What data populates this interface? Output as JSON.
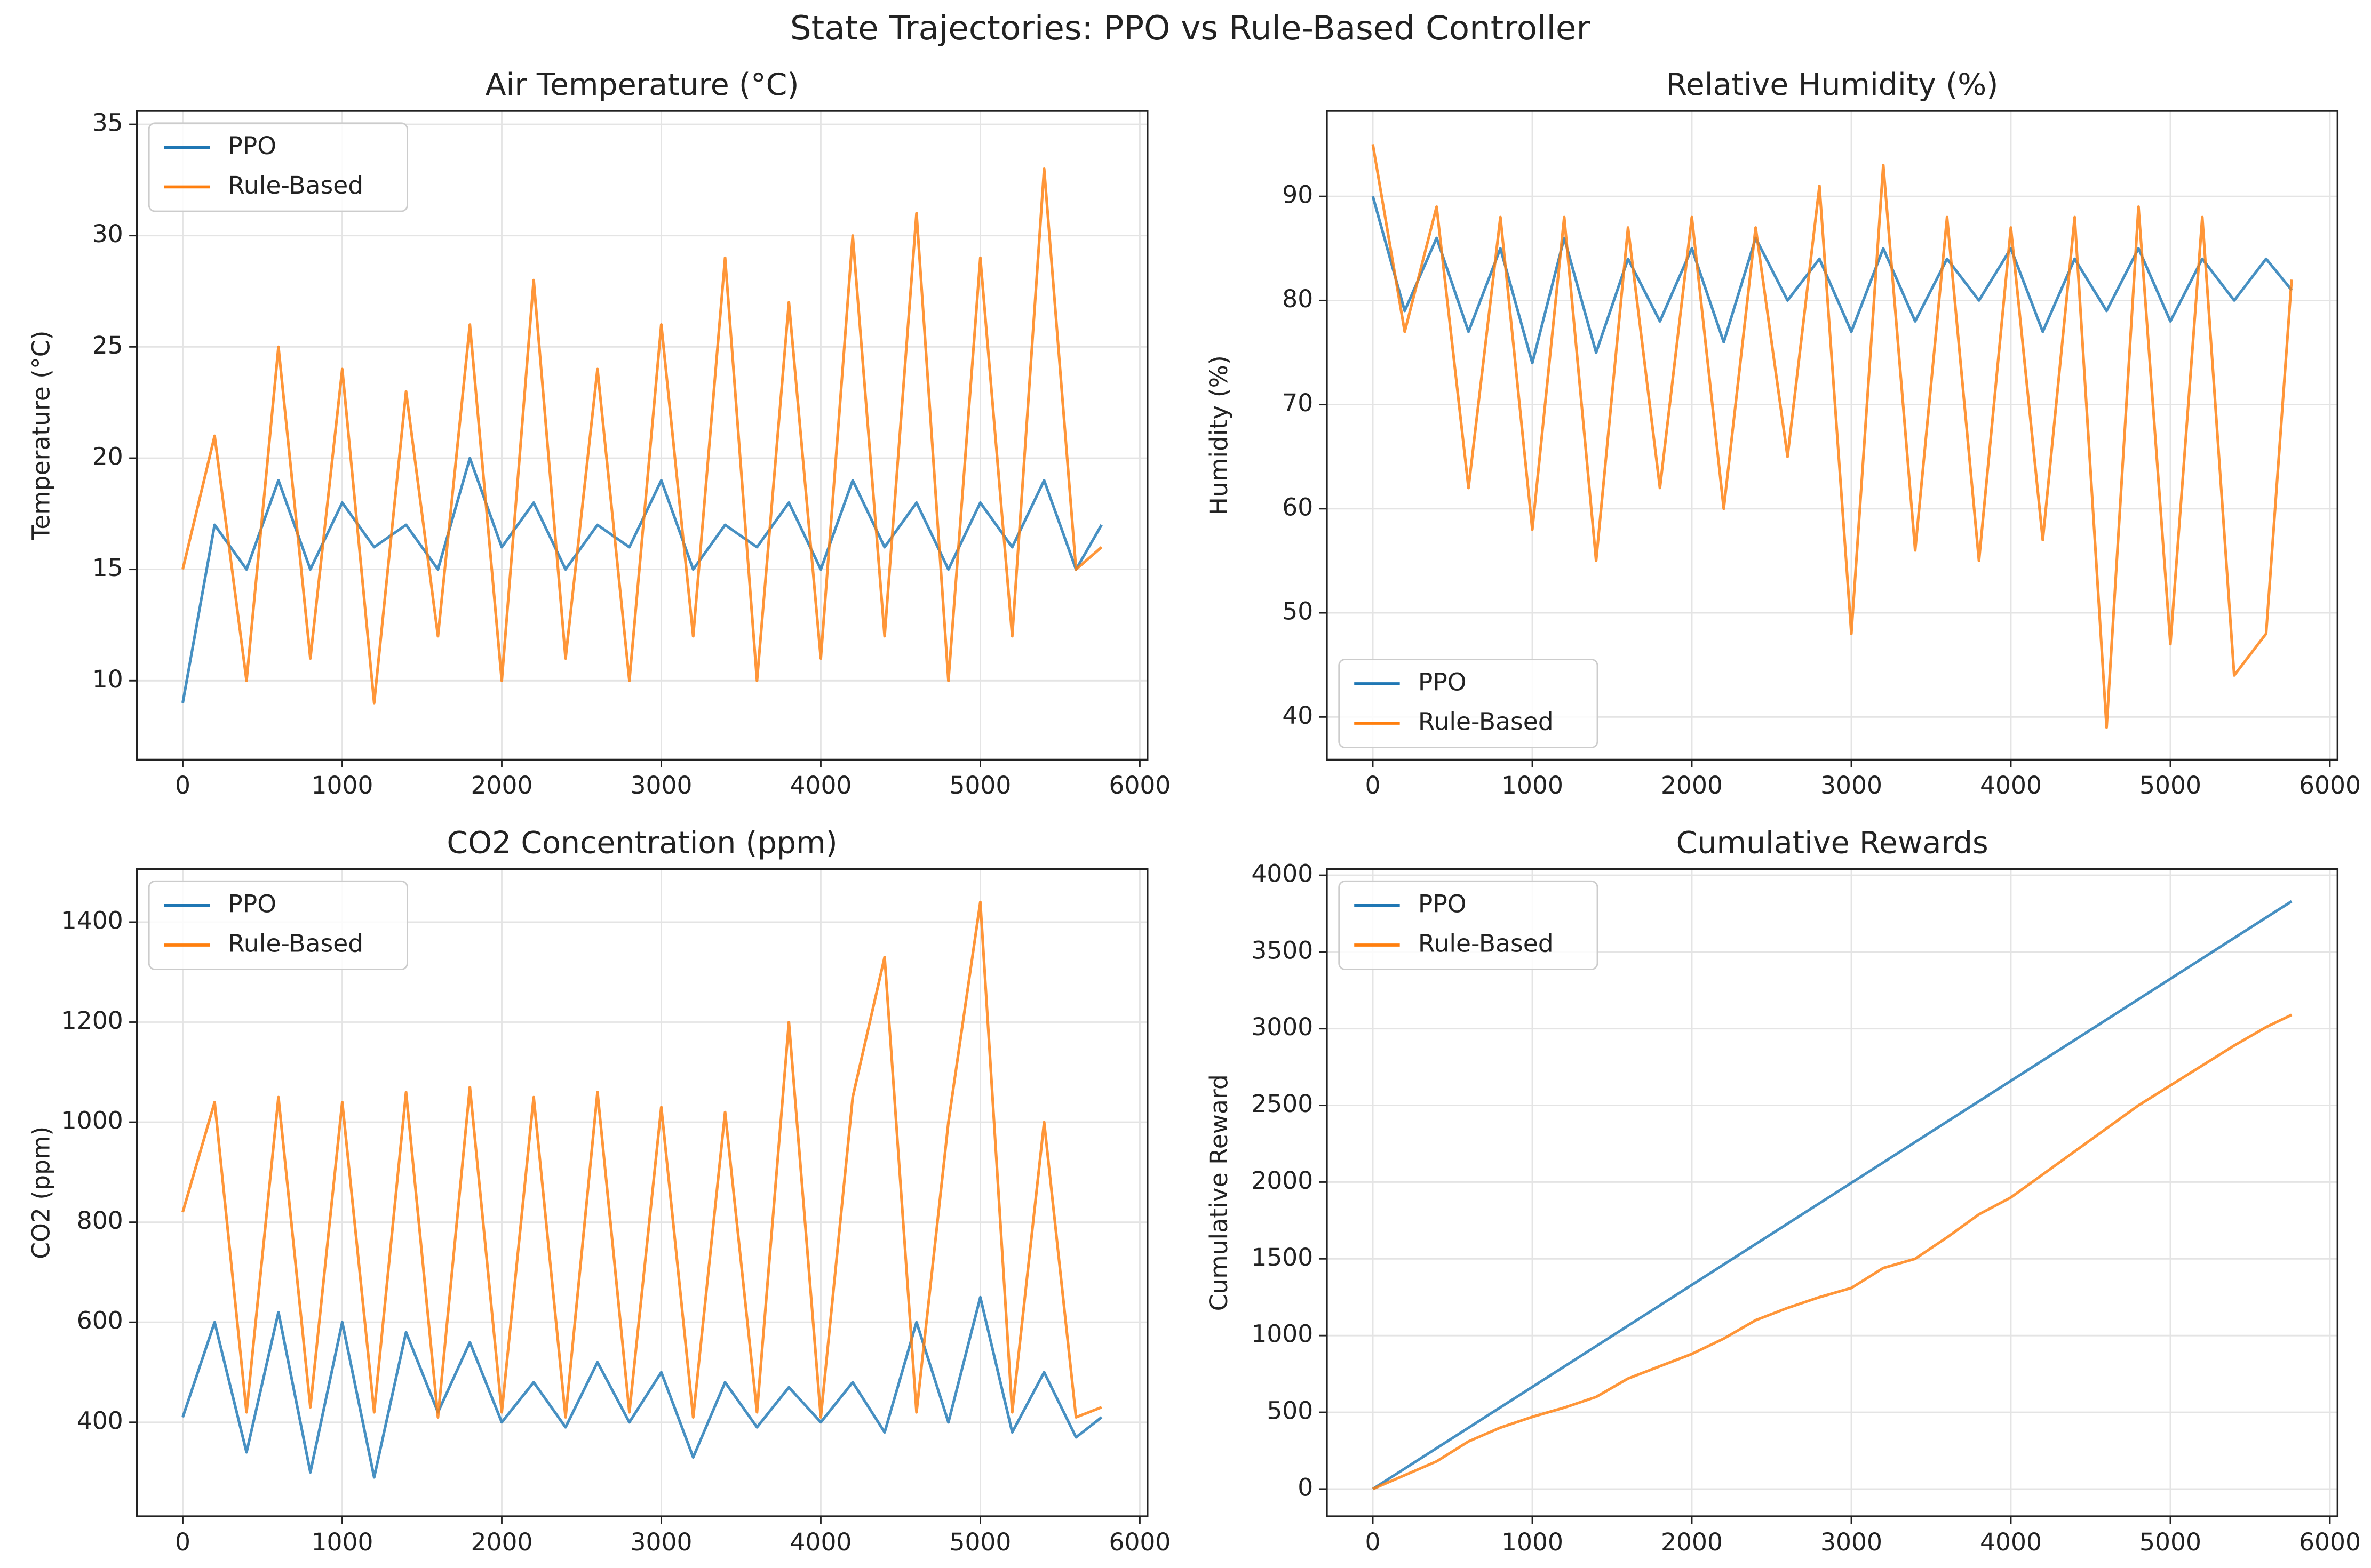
{
  "title": "State Trajectories: PPO vs Rule-Based Controller",
  "chart_data": [
    {
      "type": "line",
      "title": "Air Temperature (°C)",
      "y_label": "Temperature (°C)",
      "legend": "upper left",
      "grid": true,
      "x": [
        0,
        200,
        400,
        600,
        800,
        1000,
        1200,
        1400,
        1600,
        1800,
        2000,
        2200,
        2400,
        2600,
        2800,
        3000,
        3200,
        3400,
        3600,
        3800,
        4000,
        4200,
        4400,
        4600,
        4800,
        5000,
        5200,
        5400,
        5600,
        5760
      ],
      "series": [
        {
          "name": "PPO",
          "color": "#1f77b4",
          "values": [
            9,
            17,
            15,
            19,
            15,
            18,
            16,
            17,
            15,
            20,
            16,
            18,
            15,
            17,
            16,
            19,
            15,
            17,
            16,
            18,
            15,
            19,
            16,
            18,
            15,
            18,
            16,
            19,
            15,
            17
          ]
        },
        {
          "name": "Rule-Based",
          "color": "#ff7f0e",
          "values": [
            15,
            21,
            10,
            25,
            11,
            24,
            9,
            23,
            12,
            26,
            10,
            28,
            11,
            24,
            10,
            26,
            12,
            29,
            10,
            27,
            11,
            30,
            12,
            31,
            10,
            29,
            12,
            33,
            15,
            16
          ]
        }
      ],
      "xlim": [
        -288,
        6048
      ],
      "ylim": [
        6.45,
        35.6
      ],
      "xticks": [
        0,
        1000,
        2000,
        3000,
        4000,
        5000,
        6000
      ],
      "yticks": [
        10,
        15,
        20,
        25,
        30,
        35
      ]
    },
    {
      "type": "line",
      "title": "Relative Humidity (%)",
      "y_label": "Humidity (%)",
      "legend": "lower left",
      "grid": true,
      "x": [
        0,
        200,
        400,
        600,
        800,
        1000,
        1200,
        1400,
        1600,
        1800,
        2000,
        2200,
        2400,
        2600,
        2800,
        3000,
        3200,
        3400,
        3600,
        3800,
        4000,
        4200,
        4400,
        4600,
        4800,
        5000,
        5200,
        5400,
        5600,
        5760
      ],
      "series": [
        {
          "name": "PPO",
          "color": "#1f77b4",
          "values": [
            90,
            79,
            86,
            77,
            85,
            74,
            86,
            75,
            84,
            78,
            85,
            76,
            86,
            80,
            84,
            77,
            85,
            78,
            84,
            80,
            85,
            77,
            84,
            79,
            85,
            78,
            84,
            80,
            84,
            81
          ]
        },
        {
          "name": "Rule-Based",
          "color": "#ff7f0e",
          "values": [
            95,
            77,
            89,
            62,
            88,
            58,
            88,
            55,
            87,
            62,
            88,
            60,
            87,
            65,
            91,
            48,
            93,
            56,
            88,
            55,
            87,
            57,
            88,
            39,
            89,
            47,
            88,
            44,
            48,
            82
          ]
        }
      ],
      "xlim": [
        -288,
        6048
      ],
      "ylim": [
        35.9,
        98.2
      ],
      "xticks": [
        0,
        1000,
        2000,
        3000,
        4000,
        5000,
        6000
      ],
      "yticks": [
        40,
        50,
        60,
        70,
        80,
        90
      ]
    },
    {
      "type": "line",
      "title": "CO2 Concentration (ppm)",
      "y_label": "CO2 (ppm)",
      "legend": "upper left",
      "grid": true,
      "x": [
        0,
        200,
        400,
        600,
        800,
        1000,
        1200,
        1400,
        1600,
        1800,
        2000,
        2200,
        2400,
        2600,
        2800,
        3000,
        3200,
        3400,
        3600,
        3800,
        4000,
        4200,
        4400,
        4600,
        4800,
        5000,
        5200,
        5400,
        5600,
        5760
      ],
      "series": [
        {
          "name": "PPO",
          "color": "#1f77b4",
          "values": [
            410,
            600,
            340,
            620,
            300,
            600,
            290,
            580,
            420,
            560,
            400,
            480,
            390,
            520,
            400,
            500,
            330,
            480,
            390,
            470,
            400,
            480,
            380,
            600,
            400,
            650,
            380,
            500,
            370,
            410
          ]
        },
        {
          "name": "Rule-Based",
          "color": "#ff7f0e",
          "values": [
            820,
            1040,
            420,
            1050,
            430,
            1040,
            420,
            1060,
            410,
            1070,
            420,
            1050,
            410,
            1060,
            420,
            1030,
            410,
            1020,
            420,
            1200,
            410,
            1050,
            1330,
            420,
            1000,
            1440,
            420,
            1000,
            410,
            430
          ]
        }
      ],
      "xlim": [
        -288,
        6048
      ],
      "ylim": [
        212,
        1506
      ],
      "xticks": [
        0,
        1000,
        2000,
        3000,
        4000,
        5000,
        6000
      ],
      "yticks": [
        400,
        600,
        800,
        1000,
        1200,
        1400
      ]
    },
    {
      "type": "line",
      "title": "Cumulative Rewards",
      "y_label": "Cumulative Reward",
      "legend": "upper left",
      "grid": true,
      "x": [
        0,
        200,
        400,
        600,
        800,
        1000,
        1200,
        1400,
        1600,
        1800,
        2000,
        2200,
        2400,
        2600,
        2800,
        3000,
        3200,
        3400,
        3600,
        3800,
        4000,
        4200,
        4400,
        4600,
        4800,
        5000,
        5200,
        5400,
        5600,
        5760
      ],
      "series": [
        {
          "name": "PPO",
          "color": "#1f77b4",
          "values": [
            0,
            133,
            266,
            399,
            532,
            665,
            798,
            931,
            1064,
            1197,
            1330,
            1463,
            1596,
            1729,
            1862,
            1995,
            2128,
            2261,
            2394,
            2527,
            2660,
            2793,
            2926,
            3059,
            3192,
            3325,
            3458,
            3591,
            3724,
            3830
          ]
        },
        {
          "name": "Rule-Based",
          "color": "#ff7f0e",
          "values": [
            0,
            90,
            180,
            310,
            400,
            470,
            530,
            600,
            720,
            800,
            880,
            980,
            1100,
            1180,
            1250,
            1310,
            1440,
            1500,
            1640,
            1790,
            1900,
            2050,
            2200,
            2350,
            2500,
            2630,
            2760,
            2890,
            3010,
            3090
          ]
        }
      ],
      "xlim": [
        -288,
        6048
      ],
      "ylim": [
        -178,
        4040
      ],
      "xticks": [
        0,
        1000,
        2000,
        3000,
        4000,
        5000,
        6000
      ],
      "yticks": [
        0,
        500,
        1000,
        1500,
        2000,
        2500,
        3000,
        3500,
        4000
      ]
    }
  ]
}
